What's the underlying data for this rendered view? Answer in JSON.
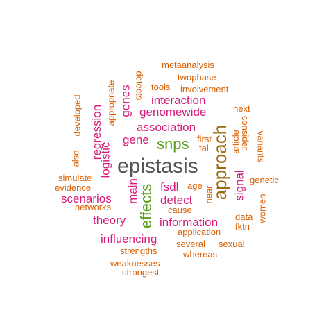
{
  "colors": {
    "orange": "#d95f02",
    "magenta": "#d6197a",
    "green": "#5a9e1e",
    "brown": "#9c6b14",
    "gray": "#555555"
  },
  "words": [
    {
      "text": "epistasis",
      "color": "gray"
    },
    {
      "text": "approach",
      "color": "brown"
    },
    {
      "text": "snps",
      "color": "green"
    },
    {
      "text": "effects",
      "color": "green"
    },
    {
      "text": "association",
      "color": "magenta"
    },
    {
      "text": "genomewide",
      "color": "magenta"
    },
    {
      "text": "interaction",
      "color": "magenta"
    },
    {
      "text": "regression",
      "color": "magenta"
    },
    {
      "text": "logistic",
      "color": "magenta"
    },
    {
      "text": "genes",
      "color": "magenta"
    },
    {
      "text": "gene",
      "color": "magenta"
    },
    {
      "text": "signal",
      "color": "magenta"
    },
    {
      "text": "main",
      "color": "magenta"
    },
    {
      "text": "fsdl",
      "color": "magenta"
    },
    {
      "text": "detect",
      "color": "magenta"
    },
    {
      "text": "information",
      "color": "magenta"
    },
    {
      "text": "theory",
      "color": "magenta"
    },
    {
      "text": "influencing",
      "color": "magenta"
    },
    {
      "text": "scenarios",
      "color": "magenta"
    },
    {
      "text": "metaanalysis",
      "color": "orange"
    },
    {
      "text": "twophase",
      "color": "orange"
    },
    {
      "text": "involvement",
      "color": "orange"
    },
    {
      "text": "tools",
      "color": "orange"
    },
    {
      "text": "detects",
      "color": "orange"
    },
    {
      "text": "appropriate",
      "color": "orange"
    },
    {
      "text": "developed",
      "color": "orange"
    },
    {
      "text": "also",
      "color": "orange"
    },
    {
      "text": "next",
      "color": "orange"
    },
    {
      "text": "first",
      "color": "orange"
    },
    {
      "text": "tal",
      "color": "orange"
    },
    {
      "text": "consider",
      "color": "orange"
    },
    {
      "text": "article",
      "color": "orange"
    },
    {
      "text": "variants",
      "color": "orange"
    },
    {
      "text": "genetic",
      "color": "orange"
    },
    {
      "text": "women",
      "color": "orange"
    },
    {
      "text": "data",
      "color": "orange"
    },
    {
      "text": "fktn",
      "color": "orange"
    },
    {
      "text": "age",
      "color": "orange"
    },
    {
      "text": "near",
      "color": "orange"
    },
    {
      "text": "cause",
      "color": "orange"
    },
    {
      "text": "simulate",
      "color": "orange"
    },
    {
      "text": "evidence",
      "color": "orange"
    },
    {
      "text": "networks",
      "color": "orange"
    },
    {
      "text": "application",
      "color": "orange"
    },
    {
      "text": "several",
      "color": "orange"
    },
    {
      "text": "sexual",
      "color": "orange"
    },
    {
      "text": "whereas",
      "color": "orange"
    },
    {
      "text": "strengths",
      "color": "orange"
    },
    {
      "text": "weaknesses",
      "color": "orange"
    },
    {
      "text": "strongest",
      "color": "orange"
    }
  ]
}
